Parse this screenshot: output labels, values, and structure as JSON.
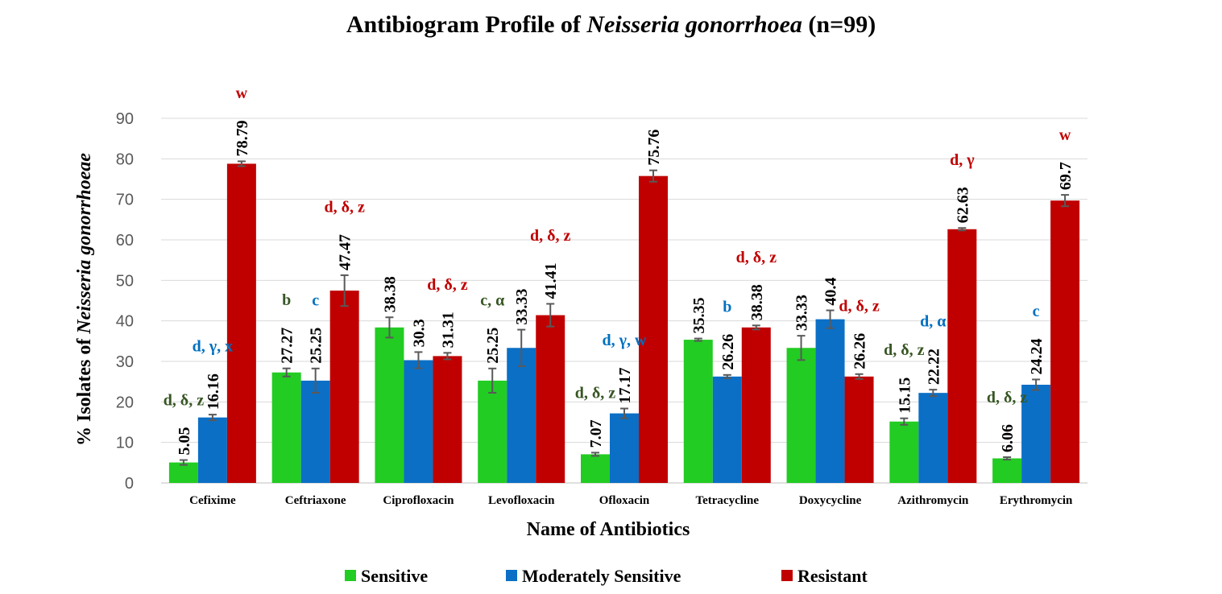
{
  "chart_data": {
    "type": "bar",
    "title_prefix": "Antibiogram Profile of ",
    "title_italic": "Neisseria gonorrhoea",
    "title_suffix": " (n=99)",
    "xlabel": "Name of Antibiotics",
    "ylabel_prefix": "% Isolates of ",
    "ylabel_italic": "Neisseria gonorrhoeae",
    "ylim": [
      0,
      90
    ],
    "yticks": [
      0,
      10,
      20,
      30,
      40,
      50,
      60,
      70,
      80,
      90
    ],
    "grid": true,
    "legend_position": "bottom",
    "categories": [
      "Cefixime",
      "Ceftriaxone",
      "Ciprofloxacin",
      "Levofloxacin",
      "Ofloxacin",
      "Tetracycline",
      "Doxycycline",
      "Azithromycin",
      "Erythromycin"
    ],
    "series": [
      {
        "name": "Sensitive",
        "color": "#22CC22",
        "values": [
          5.05,
          27.27,
          38.38,
          25.25,
          7.07,
          35.35,
          33.33,
          15.15,
          6.06
        ],
        "errors": [
          0.6,
          1.0,
          2.5,
          3.0,
          0.4,
          0.3,
          3.0,
          0.8,
          0.3
        ],
        "annotation_color": "#375623",
        "annotations": [
          "d, δ, z",
          "b",
          "",
          "c, α",
          "d, δ, z",
          "",
          "",
          "d, δ, z",
          "d, δ, z"
        ]
      },
      {
        "name": "Moderately Sensitive",
        "color": "#0B6FC6",
        "values": [
          16.16,
          25.25,
          30.3,
          33.33,
          17.17,
          26.26,
          40.4,
          22.22,
          24.24
        ],
        "errors": [
          0.7,
          3.0,
          2.0,
          4.5,
          1.2,
          0.4,
          2.2,
          0.8,
          1.3
        ],
        "annotation_color": "#0070C0",
        "annotations": [
          "d, γ, x",
          "c",
          "",
          "",
          "d, γ, w",
          "b",
          "",
          "d, α",
          "c"
        ]
      },
      {
        "name": "Resistant",
        "color": "#C00000",
        "values": [
          78.79,
          47.47,
          31.31,
          41.41,
          75.76,
          38.38,
          26.26,
          62.63,
          69.7
        ],
        "errors": [
          0.6,
          3.8,
          0.8,
          2.8,
          1.4,
          0.5,
          0.6,
          0.3,
          1.4
        ],
        "annotation_color": "#C00000",
        "annotations": [
          "w",
          "d, δ, z",
          "d, δ, z",
          "d, δ, z",
          "",
          "d, δ, z",
          "d, δ, z",
          "d, γ",
          "w"
        ]
      }
    ]
  }
}
